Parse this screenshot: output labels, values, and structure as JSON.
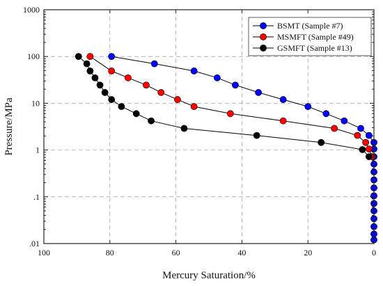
{
  "chart_data": {
    "type": "line",
    "xlabel": "Mercury Saturation/%",
    "ylabel": "Pressure/MPa",
    "xlim": [
      100,
      0
    ],
    "ylim": [
      0.01,
      1000
    ],
    "yscale": "log",
    "grid": true,
    "legend_position": "top-right",
    "x_ticks": [
      {
        "value": 100,
        "label": "100"
      },
      {
        "value": 80,
        "label": "80"
      },
      {
        "value": 60,
        "label": "60"
      },
      {
        "value": 40,
        "label": "40"
      },
      {
        "value": 20,
        "label": "20"
      },
      {
        "value": 0,
        "label": "0"
      }
    ],
    "y_ticks": [
      {
        "value": 0.01,
        "label": ".01"
      },
      {
        "value": 0.1,
        "label": ".1"
      },
      {
        "value": 1,
        "label": "1"
      },
      {
        "value": 10,
        "label": "10"
      },
      {
        "value": 100,
        "label": "100"
      },
      {
        "value": 1000,
        "label": "1000"
      }
    ],
    "series": [
      {
        "name": "BSMT (Sample #7)",
        "color": "#0000ff",
        "points": [
          [
            79.5,
            100
          ],
          [
            66.5,
            70
          ],
          [
            54.5,
            49
          ],
          [
            47.5,
            35
          ],
          [
            42,
            24.5
          ],
          [
            35,
            17
          ],
          [
            27.5,
            12
          ],
          [
            20,
            8.5
          ],
          [
            14.5,
            6
          ],
          [
            9,
            4.2
          ],
          [
            4,
            2.9
          ],
          [
            1.5,
            2.05
          ],
          [
            0,
            1.45
          ],
          [
            0,
            1.05
          ],
          [
            0,
            0.72
          ],
          [
            0,
            0.5
          ],
          [
            0,
            0.34
          ],
          [
            0,
            0.23
          ],
          [
            0,
            0.155
          ],
          [
            0,
            0.105
          ],
          [
            0,
            0.072
          ],
          [
            0,
            0.05
          ],
          [
            0,
            0.034
          ],
          [
            0,
            0.023
          ],
          [
            0,
            0.016
          ],
          [
            0,
            0.012
          ]
        ]
      },
      {
        "name": "MSMFT (Sample #49)",
        "color": "#ff0000",
        "points": [
          [
            86,
            100
          ],
          [
            79.5,
            49
          ],
          [
            74.5,
            35
          ],
          [
            69,
            24.5
          ],
          [
            64.5,
            17
          ],
          [
            59.5,
            12
          ],
          [
            54.5,
            8.5
          ],
          [
            43.5,
            6
          ],
          [
            27.5,
            4.2
          ],
          [
            12,
            2.9
          ],
          [
            5,
            2.05
          ],
          [
            2.5,
            1.45
          ],
          [
            1.5,
            1.05
          ],
          [
            0.5,
            0.72
          ]
        ]
      },
      {
        "name": "GSMFT (Sample #13)",
        "color": "#000000",
        "points": [
          [
            89.5,
            100
          ],
          [
            87,
            70
          ],
          [
            86,
            49
          ],
          [
            84.5,
            35
          ],
          [
            83,
            24.5
          ],
          [
            81.5,
            17
          ],
          [
            79.5,
            12
          ],
          [
            76.5,
            8.5
          ],
          [
            72,
            6
          ],
          [
            67.5,
            4.2
          ],
          [
            57.5,
            2.9
          ],
          [
            35.5,
            2.05
          ],
          [
            16,
            1.45
          ],
          [
            3.5,
            1.02
          ],
          [
            1.5,
            0.72
          ]
        ]
      }
    ]
  }
}
